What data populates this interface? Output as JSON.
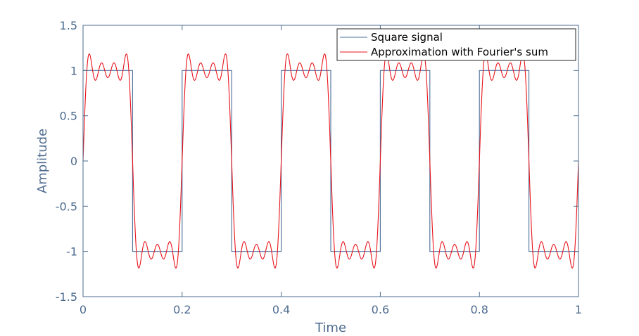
{
  "chart_data": {
    "type": "line",
    "title": "",
    "xlabel": "Time",
    "ylabel": "Amplitude",
    "xlim": [
      0,
      1
    ],
    "ylim": [
      -1.5,
      1.5
    ],
    "xticks": [
      0,
      0.2,
      0.4,
      0.6,
      0.8,
      1
    ],
    "xtick_labels": [
      "0",
      "0.2",
      "0.4",
      "0.6",
      "0.8",
      "1"
    ],
    "yticks": [
      -1.5,
      -1,
      -0.5,
      0,
      0.5,
      1,
      1.5
    ],
    "ytick_labels": [
      "-1.5",
      "-1",
      "-0.5",
      "0",
      "0.5",
      "1",
      "1.5"
    ],
    "grid": false,
    "legend_position": "top-right",
    "series": [
      {
        "name": "Square signal",
        "color": "#4a6f9a",
        "kind": "square",
        "frequency": 5,
        "amplitude": 1,
        "x": [
          0,
          0.1,
          0.1,
          0.2,
          0.2,
          0.3,
          0.3,
          0.4,
          0.4,
          0.5,
          0.5,
          0.6,
          0.6,
          0.7,
          0.7,
          0.8,
          0.8,
          0.9,
          0.9,
          1.0
        ],
        "y": [
          1,
          1,
          -1,
          -1,
          1,
          1,
          -1,
          -1,
          1,
          1,
          -1,
          -1,
          1,
          1,
          -1,
          -1,
          1,
          1,
          -1,
          -1
        ]
      },
      {
        "name": "Approximation with Fourier's sum",
        "color": "#e8141c",
        "kind": "fourier",
        "frequency": 5,
        "odd_harmonics": [
          1,
          3,
          5,
          7
        ],
        "x_peaks": [
          0.017,
          0.05,
          0.083,
          0.117,
          0.15,
          0.183
        ],
        "y_peaks": [
          1.18,
          1.1,
          1.18,
          -1.18,
          -1.1,
          -1.18
        ]
      }
    ]
  }
}
